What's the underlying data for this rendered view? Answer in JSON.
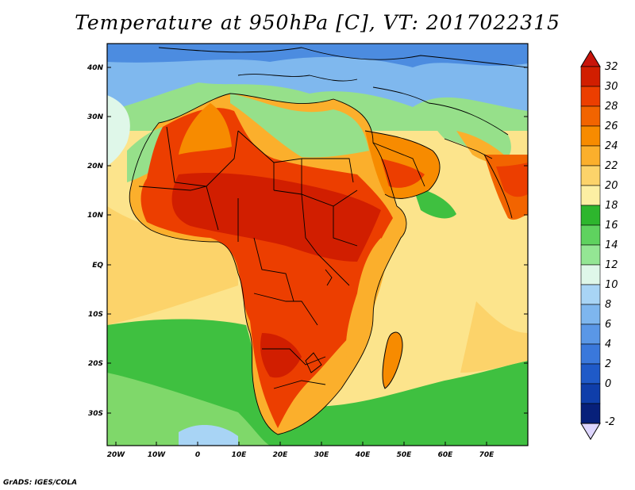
{
  "title": "Temperature at 950hPa [C], VT: 2017022315",
  "credit": "GrADS: IGES/COLA",
  "lat_ticks": [
    "40N",
    "30N",
    "20N",
    "10N",
    "EQ",
    "10S",
    "20S",
    "30S"
  ],
  "lon_ticks": [
    "20W",
    "10W",
    "0",
    "10E",
    "20E",
    "30E",
    "40E",
    "50E",
    "60E",
    "70E"
  ],
  "colorbar": {
    "labels": [
      "32",
      "30",
      "28",
      "26",
      "24",
      "22",
      "20",
      "18",
      "16",
      "14",
      "12",
      "10",
      "8",
      "6",
      "4",
      "2",
      "0",
      "-2"
    ],
    "colors": [
      "#d11e00",
      "#ec3e00",
      "#f26400",
      "#f78b00",
      "#fbaf2c",
      "#fcd36a",
      "#fcefa3",
      "#2db62d",
      "#5fd25f",
      "#94e694",
      "#dff7e9",
      "#a8d4f5",
      "#7eb6ee",
      "#5a97e6",
      "#3a78db",
      "#1f5ac8",
      "#0f3eaa",
      "#07207a"
    ],
    "over_color": "#c8140a",
    "under_color": "#ded6ff"
  }
}
